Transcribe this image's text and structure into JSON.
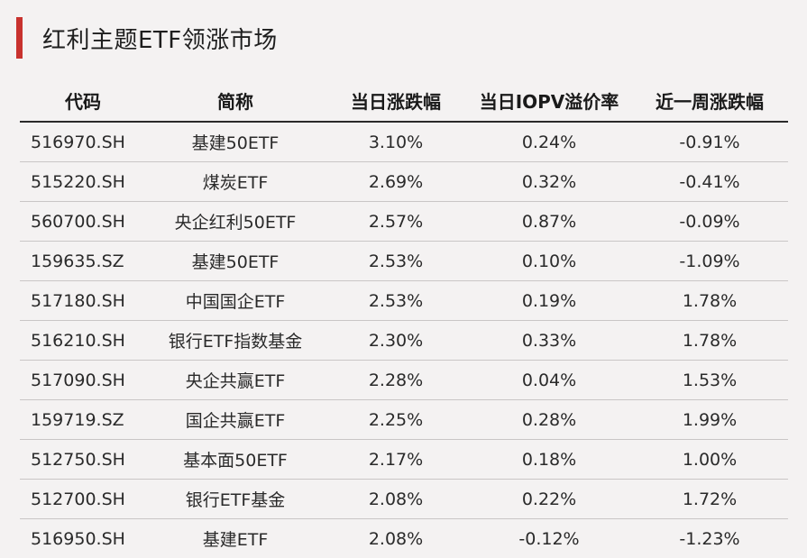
{
  "title": "红利主题ETF领涨市场",
  "colors": {
    "accent": "#c8322e",
    "background": "#f4f2f2",
    "header_rule": "#2a2a2a",
    "row_rule": "#c9c6c6"
  },
  "table": {
    "headers": [
      "代码",
      "简称",
      "当日涨跌幅",
      "当日IOPV溢价率",
      "近一周涨跌幅"
    ],
    "rows": [
      [
        "516970.SH",
        "基建50ETF",
        "3.10%",
        "0.24%",
        "-0.91%"
      ],
      [
        "515220.SH",
        "煤炭ETF",
        "2.69%",
        "0.32%",
        "-0.41%"
      ],
      [
        "560700.SH",
        "央企红利50ETF",
        "2.57%",
        "0.87%",
        "-0.09%"
      ],
      [
        "159635.SZ",
        "基建50ETF",
        "2.53%",
        "0.10%",
        "-1.09%"
      ],
      [
        "517180.SH",
        "中国国企ETF",
        "2.53%",
        "0.19%",
        "1.78%"
      ],
      [
        "516210.SH",
        "银行ETF指数基金",
        "2.30%",
        "0.33%",
        "1.78%"
      ],
      [
        "517090.SH",
        "央企共赢ETF",
        "2.28%",
        "0.04%",
        "1.53%"
      ],
      [
        "159719.SZ",
        "国企共赢ETF",
        "2.25%",
        "0.28%",
        "1.99%"
      ],
      [
        "512750.SH",
        "基本面50ETF",
        "2.17%",
        "0.18%",
        "1.00%"
      ],
      [
        "512700.SH",
        "银行ETF基金",
        "2.08%",
        "0.22%",
        "1.72%"
      ],
      [
        "516950.SH",
        "基建ETF",
        "2.08%",
        "-0.12%",
        "-1.23%"
      ]
    ]
  }
}
